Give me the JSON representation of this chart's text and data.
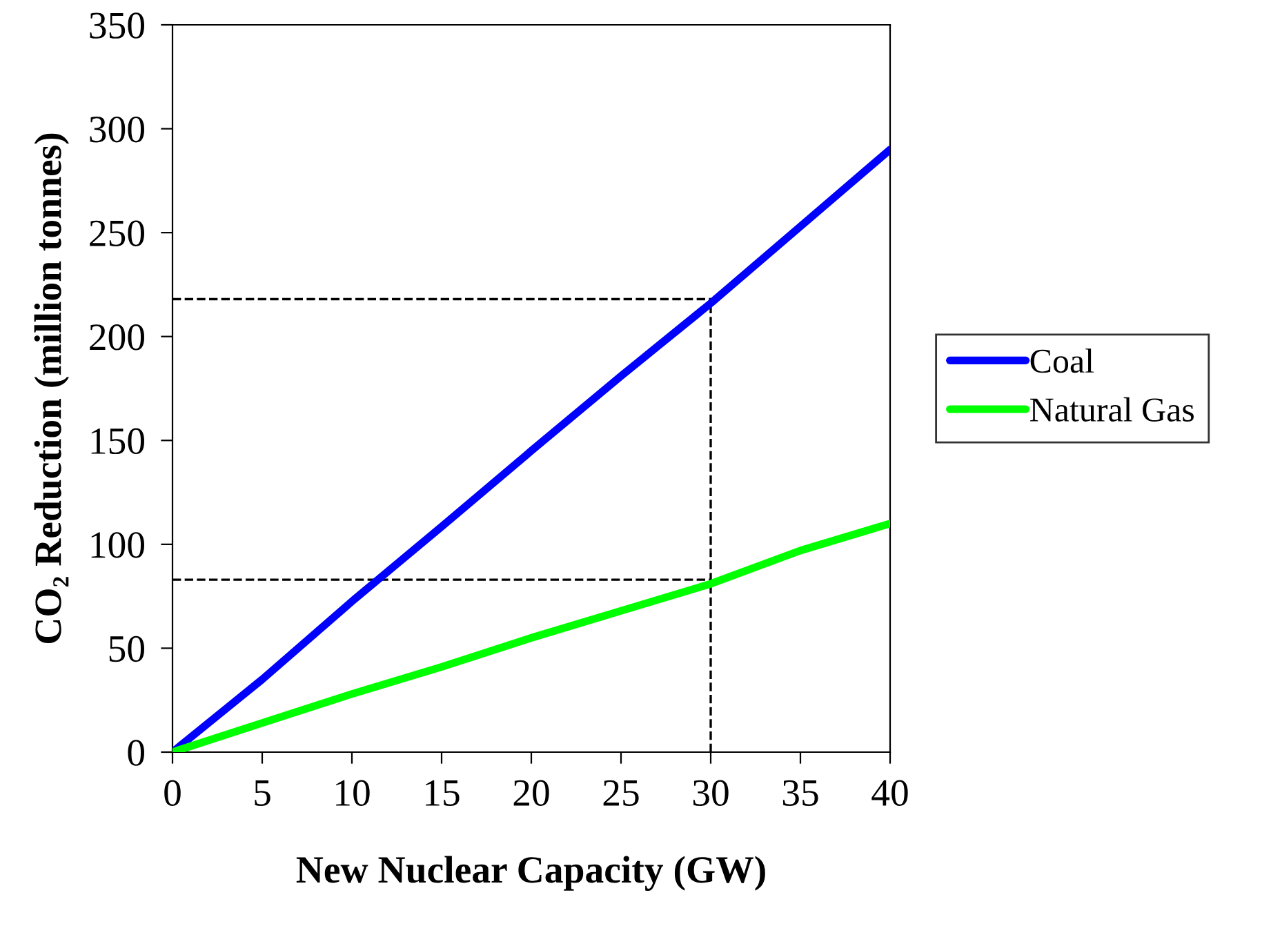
{
  "chart_data": {
    "type": "line",
    "xlabel": "New Nuclear Capacity (GW)",
    "ylabel": "CO₂ Reduction (million tonnes)",
    "x": [
      0,
      5,
      10,
      15,
      20,
      25,
      30,
      35,
      40
    ],
    "series": [
      {
        "name": "Coal",
        "color": "#0000ff",
        "values": [
          0,
          35,
          72.5,
          108.5,
          145,
          181,
          216,
          253,
          290
        ]
      },
      {
        "name": "Natural Gas",
        "color": "#00ff00",
        "values": [
          0,
          14,
          28,
          41,
          55,
          68,
          81,
          97,
          110
        ]
      }
    ],
    "xlim": [
      0,
      40
    ],
    "xticks": [
      0,
      5,
      10,
      15,
      20,
      25,
      30,
      35,
      40
    ],
    "ylim": [
      0,
      350
    ],
    "yticks": [
      0,
      50,
      100,
      150,
      200,
      250,
      300,
      350
    ],
    "ref_lines": [
      {
        "axis": "y",
        "value": 218,
        "color": "#000000",
        "line_style": "dashed"
      },
      {
        "axis": "y",
        "value": 83,
        "color": "#000000",
        "line_style": "dashed"
      },
      {
        "axis": "x",
        "value": 30,
        "color": "#000000",
        "line_style": "dashed"
      }
    ],
    "grid": false,
    "legend": "right",
    "marker": "none",
    "line_style": "solid"
  }
}
